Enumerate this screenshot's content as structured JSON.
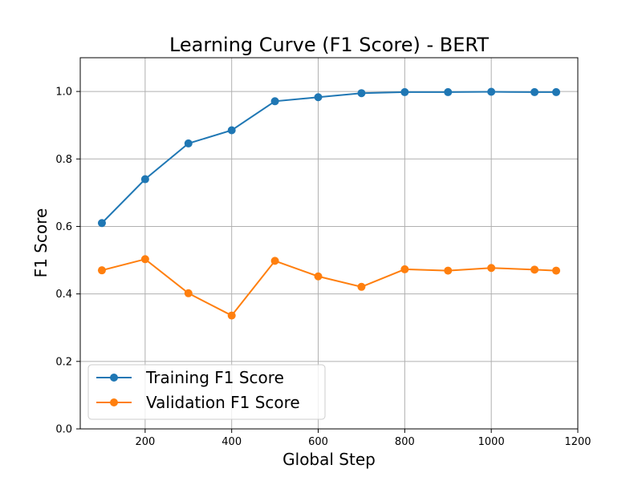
{
  "chart_data": {
    "type": "line",
    "title": "Learning Curve (F1 Score) - BERT",
    "xlabel": "Global Step",
    "ylabel": "F1 Score",
    "xlim": [
      50,
      1200
    ],
    "ylim": [
      0.0,
      1.1
    ],
    "x_ticks": [
      200,
      400,
      600,
      800,
      1000,
      1200
    ],
    "y_ticks": [
      0.0,
      0.2,
      0.4,
      0.6,
      0.8,
      1.0
    ],
    "x_tick_labels": [
      "200",
      "400",
      "600",
      "800",
      "1000",
      "1200"
    ],
    "y_tick_labels": [
      "0.0",
      "0.2",
      "0.4",
      "0.6",
      "0.8",
      "1.0"
    ],
    "grid": true,
    "legend_position": "lower-left",
    "x": [
      100,
      200,
      300,
      400,
      500,
      600,
      700,
      800,
      900,
      1000,
      1100,
      1150
    ],
    "series": [
      {
        "name": "Training F1 Score",
        "color": "#1f77b4",
        "values": [
          0.61,
          0.74,
          0.846,
          0.885,
          0.971,
          0.983,
          0.995,
          0.998,
          0.998,
          0.999,
          0.998,
          0.998
        ]
      },
      {
        "name": "Validation F1 Score",
        "color": "#ff7f0e",
        "values": [
          0.47,
          0.503,
          0.402,
          0.336,
          0.498,
          0.452,
          0.421,
          0.473,
          0.469,
          0.477,
          0.472,
          0.469
        ]
      }
    ]
  }
}
